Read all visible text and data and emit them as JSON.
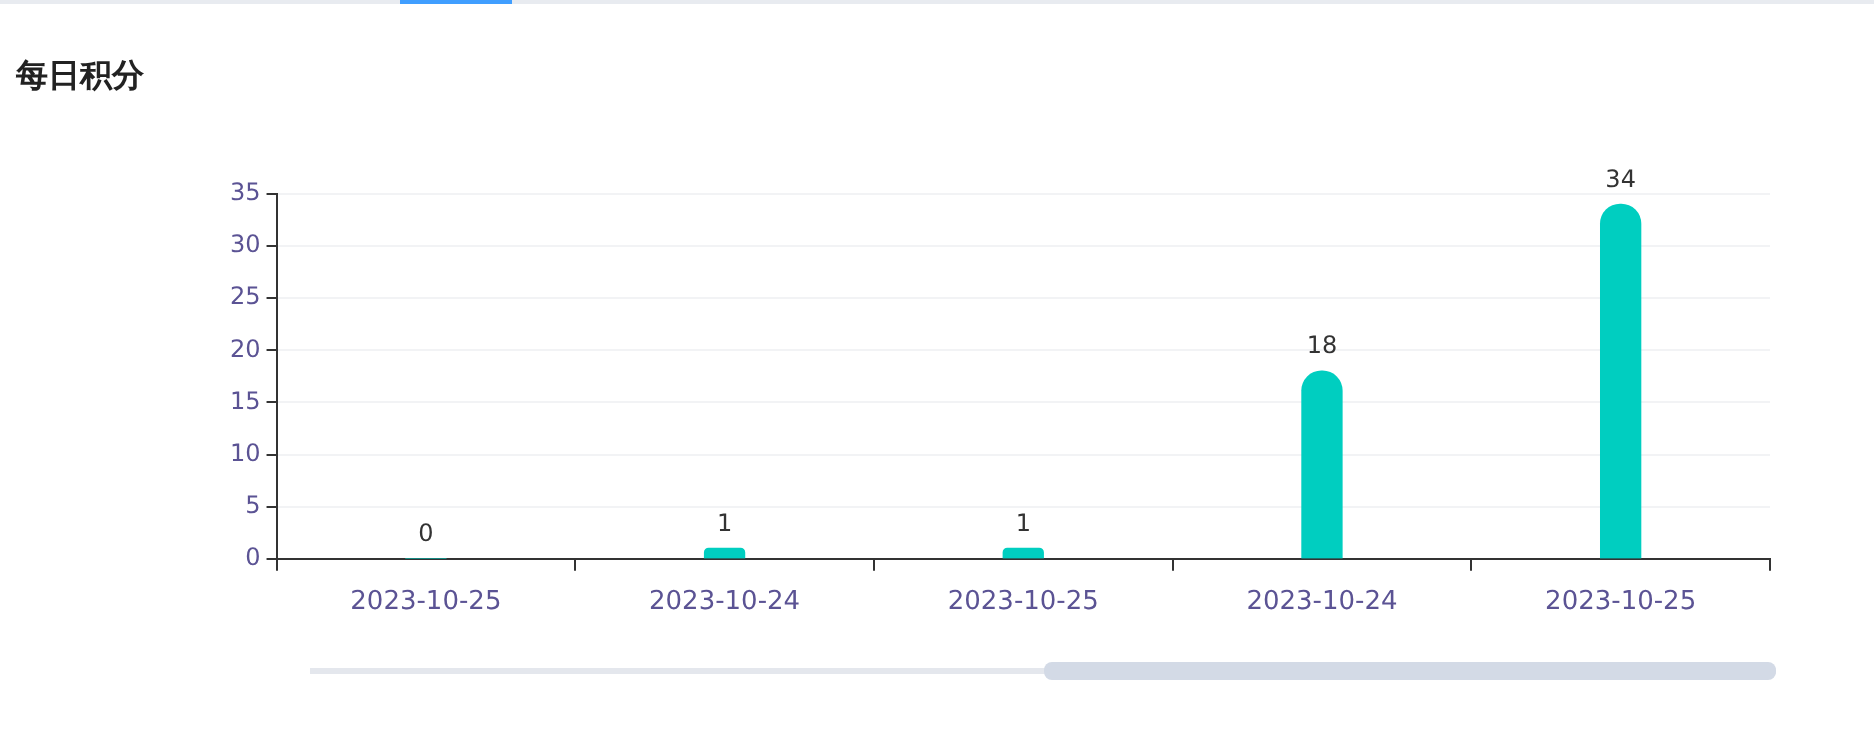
{
  "chart_data": {
    "type": "bar",
    "title": "每日积分",
    "categories": [
      "2023-10-25",
      "2023-10-24",
      "2023-10-25",
      "2023-10-24",
      "2023-10-25"
    ],
    "values": [
      0,
      1,
      1,
      18,
      34
    ],
    "color": "#00cec0",
    "ylim": [
      0,
      35
    ],
    "yticks": [
      0,
      5,
      10,
      15,
      20,
      25,
      30,
      35
    ],
    "grid": "y",
    "data_labels": true,
    "legend": false
  }
}
